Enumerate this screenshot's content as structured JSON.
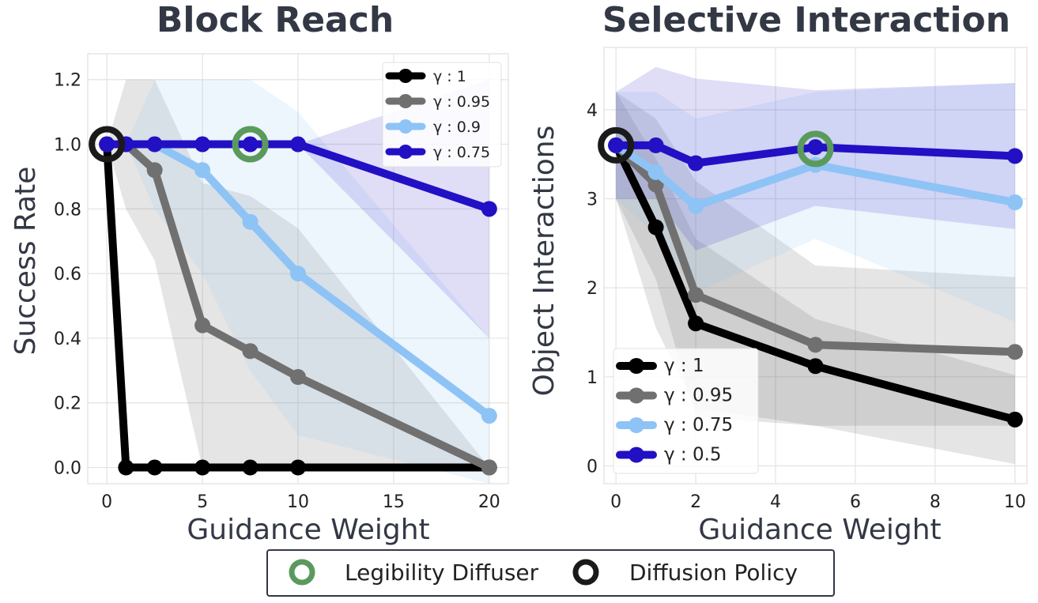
{
  "chart_data": [
    {
      "type": "line",
      "title": "Block Reach",
      "xlabel": "Guidance Weight",
      "ylabel": "Success Rate",
      "xlim": [
        -1,
        21
      ],
      "ylim": [
        -0.05,
        1.28
      ],
      "xticks": [
        0,
        5,
        10,
        15,
        20
      ],
      "yticks": [
        0.0,
        0.2,
        0.4,
        0.6,
        0.8,
        1.0,
        1.2
      ],
      "ytick_labels": [
        "0.0",
        "0.2",
        "0.4",
        "0.6",
        "0.8",
        "1.0",
        "1.2"
      ],
      "xtick_labels": [
        "0",
        "5",
        "10",
        "15",
        "20"
      ],
      "grid": true,
      "legend_position": "top-right",
      "series": [
        {
          "name": "γ : 1",
          "color": "#000000",
          "x": [
            0,
            1,
            2.5,
            5,
            7.5,
            10,
            20
          ],
          "y": [
            1.0,
            0.0,
            0.0,
            0.0,
            0.0,
            0.0,
            0.0
          ],
          "band": {
            "x": [
              0,
              1,
              2.5,
              5,
              7.5,
              10,
              20
            ],
            "lo": [
              1.0,
              0.0,
              0.0,
              0.0,
              0.0,
              0.0,
              0.0
            ],
            "hi": [
              1.0,
              0.0,
              0.0,
              0.0,
              0.0,
              0.0,
              0.0
            ]
          }
        },
        {
          "name": "γ : 0.95",
          "color": "#707070",
          "x": [
            0,
            1,
            2.5,
            5,
            7.5,
            10,
            20
          ],
          "y": [
            1.0,
            1.0,
            0.92,
            0.44,
            0.36,
            0.28,
            0.0
          ],
          "band": {
            "x": [
              0,
              1,
              2.5,
              5,
              7.5,
              10,
              20
            ],
            "lo": [
              1.0,
              0.8,
              0.64,
              0.0,
              0.0,
              0.0,
              0.0
            ],
            "hi": [
              1.0,
              1.2,
              1.2,
              0.88,
              0.84,
              0.74,
              0.0
            ]
          }
        },
        {
          "name": "γ : 0.9",
          "color": "#8ec3f5",
          "x": [
            0,
            1,
            2.5,
            5,
            7.5,
            10,
            20
          ],
          "y": [
            1.0,
            1.0,
            1.0,
            0.92,
            0.76,
            0.6,
            0.16
          ],
          "band": {
            "x": [
              0,
              1,
              2.5,
              5,
              7.5,
              10,
              20
            ],
            "lo": [
              1.0,
              1.0,
              0.8,
              0.6,
              0.3,
              0.1,
              -0.05
            ],
            "hi": [
              1.0,
              1.0,
              1.2,
              1.2,
              1.2,
              1.1,
              0.4
            ]
          }
        },
        {
          "name": "γ : 0.75",
          "color": "#2210c4",
          "x": [
            0,
            1,
            2.5,
            5,
            7.5,
            10,
            20
          ],
          "y": [
            1.0,
            1.0,
            1.0,
            1.0,
            1.0,
            1.0,
            0.8
          ],
          "band": {
            "x": [
              0,
              1,
              2.5,
              5,
              7.5,
              10,
              20
            ],
            "lo": [
              1.0,
              1.0,
              1.0,
              1.0,
              1.0,
              1.0,
              0.4
            ],
            "hi": [
              1.0,
              1.0,
              1.0,
              1.0,
              1.0,
              1.0,
              1.2
            ]
          }
        }
      ],
      "markers": [
        {
          "kind": "Legibility Diffuser",
          "x": 7.5,
          "y": 1.0,
          "color": "#5b9a5d"
        },
        {
          "kind": "Diffusion Policy",
          "x": 0,
          "y": 1.0,
          "color": "#1a1a1a"
        }
      ]
    },
    {
      "type": "line",
      "title": "Selective Interaction",
      "xlabel": "Guidance Weight",
      "ylabel": "Object Interactions",
      "xlim": [
        -0.3,
        10.3
      ],
      "ylim": [
        -0.2,
        4.7
      ],
      "xticks": [
        0,
        2,
        4,
        6,
        8,
        10
      ],
      "yticks": [
        0,
        1,
        2,
        3,
        4
      ],
      "xtick_labels": [
        "0",
        "2",
        "4",
        "6",
        "8",
        "10"
      ],
      "ytick_labels": [
        "0",
        "1",
        "2",
        "3",
        "4"
      ],
      "grid": true,
      "legend_position": "bottom-left",
      "series": [
        {
          "name": "γ : 1",
          "color": "#000000",
          "x": [
            0,
            1,
            2,
            5,
            10
          ],
          "y": [
            3.6,
            2.68,
            1.6,
            1.12,
            0.52
          ],
          "band": {
            "x": [
              0,
              1,
              2,
              5,
              10
            ],
            "lo": [
              3.0,
              1.55,
              0.65,
              0.45,
              0.02
            ],
            "hi": [
              4.2,
              3.45,
              2.55,
              1.65,
              1.02
            ]
          }
        },
        {
          "name": "γ : 0.95",
          "color": "#707070",
          "x": [
            0,
            1,
            2,
            5,
            10
          ],
          "y": [
            3.6,
            3.16,
            1.92,
            1.36,
            1.28
          ],
          "band": {
            "x": [
              0,
              1,
              2,
              5,
              10
            ],
            "lo": [
              3.0,
              2.1,
              0.55,
              0.45,
              0.45
            ],
            "hi": [
              4.2,
              3.9,
              3.2,
              2.25,
              2.12
            ]
          }
        },
        {
          "name": "γ : 0.75",
          "color": "#8ec3f5",
          "x": [
            0,
            1,
            2,
            5,
            10
          ],
          "y": [
            3.6,
            3.3,
            2.92,
            3.38,
            2.96
          ],
          "band": {
            "x": [
              0,
              1,
              2,
              5,
              10
            ],
            "lo": [
              3.0,
              2.6,
              1.95,
              2.55,
              1.62
            ],
            "hi": [
              4.2,
              4.2,
              3.9,
              4.2,
              4.3
            ]
          }
        },
        {
          "name": "γ : 0.5",
          "color": "#2210c4",
          "x": [
            0,
            1,
            2,
            5,
            10
          ],
          "y": [
            3.6,
            3.6,
            3.4,
            3.58,
            3.48
          ],
          "band": {
            "x": [
              0,
              1,
              2,
              5,
              10
            ],
            "lo": [
              3.0,
              3.0,
              2.42,
              2.92,
              2.66
            ],
            "hi": [
              4.2,
              4.48,
              4.35,
              4.22,
              4.3
            ]
          }
        }
      ],
      "markers": [
        {
          "kind": "Legibility Diffuser",
          "x": 5,
          "y": 3.56,
          "color": "#5b9a5d"
        },
        {
          "kind": "Diffusion Policy",
          "x": 0,
          "y": 3.6,
          "color": "#1a1a1a"
        }
      ]
    }
  ],
  "bottom_legend": {
    "items": [
      {
        "label": "Legibility Diffuser",
        "color": "#5b9a5d",
        "icon": "ring-icon"
      },
      {
        "label": "Diffusion Policy",
        "color": "#1a1a1a",
        "icon": "ring-icon"
      }
    ]
  }
}
